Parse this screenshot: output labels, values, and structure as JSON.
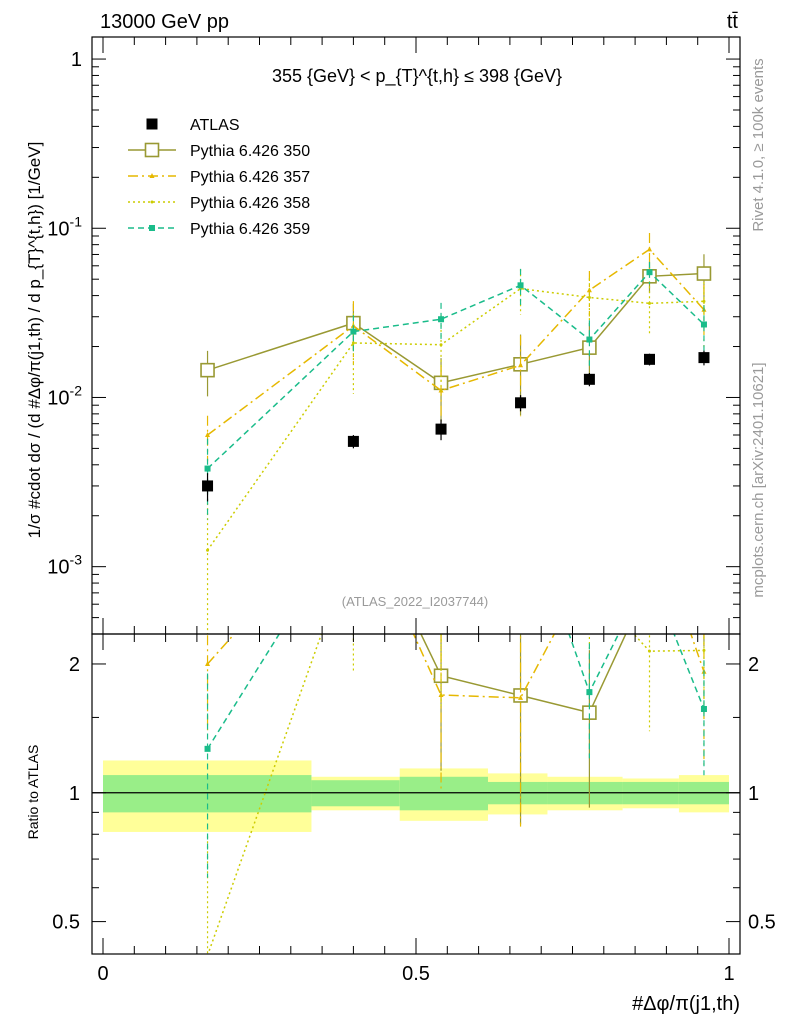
{
  "header": {
    "left": "13000 GeV pp",
    "right": "tt̄"
  },
  "side_labels": {
    "rivet": "Rivet 4.1.0, ≥ 100k events",
    "mcplots": "mcplots.cern.ch [arXiv:2401.10621]"
  },
  "chart_data": {
    "type": "scatter",
    "title": "355 {GeV} < p_{T}^{t,h} ≤ 398 {GeV}",
    "analysis_label": "(ATLAS_2022_I2037744)",
    "ylabel": "1/σ #cdot dσ / (d #Δφ/π(j1,th) / d p_{T}^{t,h}) [1/GeV]",
    "xlabel": "#Δφ/π(j1,th)",
    "ratio_ylabel": "Ratio to ATLAS",
    "xlim": [
      0,
      1
    ],
    "ylim": [
      0.0004,
      1.35
    ],
    "ratio_ylim": [
      0.42,
      2.35
    ],
    "x_ticks": [
      "0",
      "0.5",
      "1"
    ],
    "y_ticks": [
      "10^-3",
      "10^-2",
      "10^-1",
      "1"
    ],
    "ratio_ticks": [
      "0.5",
      "1",
      "2"
    ],
    "bins": [
      [
        0.0,
        0.333
      ],
      [
        0.333,
        0.474
      ],
      [
        0.474,
        0.615
      ],
      [
        0.615,
        0.71
      ],
      [
        0.71,
        0.83
      ],
      [
        0.83,
        0.92
      ],
      [
        0.92,
        1.0
      ]
    ],
    "x": [
      0.167,
      0.4,
      0.54,
      0.667,
      0.777,
      0.873,
      0.96
    ],
    "data": {
      "name": "ATLAS",
      "values": [
        0.003,
        0.0055,
        0.0065,
        0.0093,
        0.0128,
        0.0168,
        0.0172
      ],
      "stat_rel": [
        0.1,
        0.07,
        0.09,
        0.06,
        0.06,
        0.06,
        0.06
      ],
      "total_rel": [
        0.19,
        0.09,
        0.14,
        0.11,
        0.09,
        0.08,
        0.1
      ]
    },
    "series": [
      {
        "name": "Pythia 6.426 350",
        "color": "#999933",
        "marker": "open-square",
        "dash": "",
        "values": [
          0.0145,
          0.0275,
          0.0122,
          0.0157,
          0.0197,
          0.052,
          0.054
        ],
        "err_rel": [
          0.3,
          0.3,
          0.4,
          0.5,
          0.4,
          0.2,
          0.3
        ]
      },
      {
        "name": "Pythia 6.426 357",
        "color": "#e6b800",
        "marker": "triangle",
        "dash": "10,4,2,4",
        "values": [
          0.006,
          0.0265,
          0.011,
          0.0155,
          0.043,
          0.075,
          0.033
        ],
        "err_rel": [
          0.3,
          0.4,
          0.4,
          0.5,
          0.3,
          0.25,
          0.4
        ]
      },
      {
        "name": "Pythia 6.426 358",
        "color": "#cccc00",
        "marker": "dot",
        "dash": "2,3",
        "values": [
          0.00125,
          0.021,
          0.0205,
          0.044,
          0.039,
          0.036,
          0.037
        ],
        "err_rel": [
          0.9,
          0.5,
          0.5,
          0.3,
          0.3,
          0.35,
          0.3
        ]
      },
      {
        "name": "Pythia 6.426 359",
        "color": "#1abc8a",
        "marker": "small-square",
        "dash": "6,4",
        "values": [
          0.0038,
          0.0245,
          0.029,
          0.046,
          0.022,
          0.055,
          0.027
        ],
        "err_rel": [
          0.5,
          0.25,
          0.25,
          0.25,
          0.3,
          0.15,
          0.3
        ]
      }
    ]
  }
}
